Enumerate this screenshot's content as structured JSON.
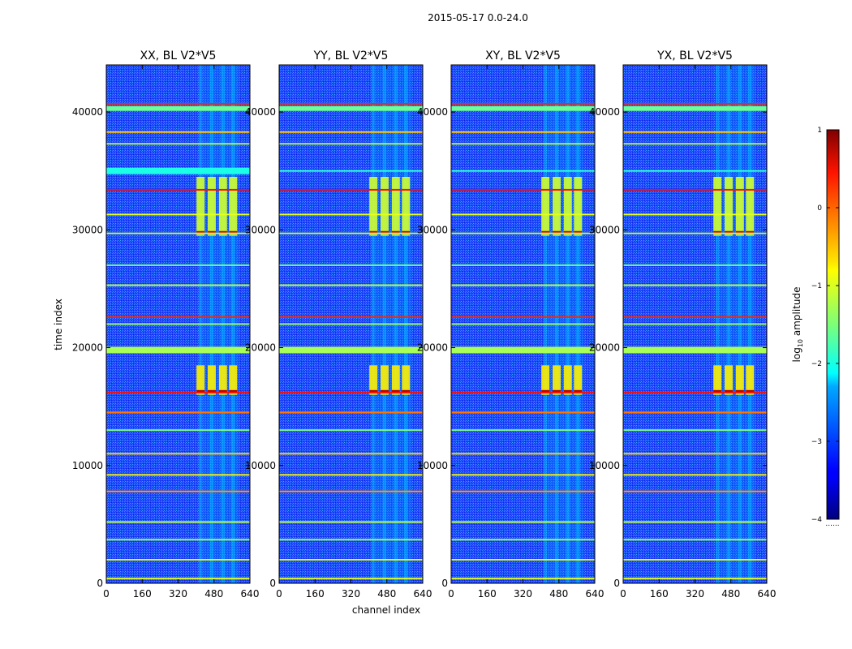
{
  "figure": {
    "suptitle": "2015-05-17 0.0-24.0",
    "xlabel": "channel index",
    "ylabel": "time index",
    "colorbar_label_prefix": "log",
    "colorbar_label_sub": "10",
    "colorbar_label_suffix": " amplitude",
    "colorbar_footnote": "......"
  },
  "chart_data": {
    "type": "heatmap",
    "colormap": "jet",
    "xlim": [
      0,
      640
    ],
    "ylim": [
      0,
      44000
    ],
    "xticks": [
      "0",
      "160",
      "320",
      "480",
      "640"
    ],
    "yticks": [
      "0",
      "10000",
      "20000",
      "30000",
      "40000"
    ],
    "xtick_values": [
      0,
      160,
      320,
      480,
      640
    ],
    "ytick_values": [
      0,
      10000,
      20000,
      30000,
      40000
    ],
    "colorbar": {
      "min": -4,
      "max": 1,
      "ticks": [
        "1",
        "0",
        "−1",
        "−2",
        "−3",
        "−4"
      ],
      "tick_values": [
        1,
        0,
        -1,
        -2,
        -3,
        -4
      ]
    },
    "panels": [
      {
        "title": "XX, BL V2*V5",
        "ytick_labels": [
          "0",
          "10000",
          "20000",
          "30000",
          "40000"
        ]
      },
      {
        "title": "YY, BL V2*V5",
        "ytick_labels": [
          "0",
          "10000",
          "20000",
          "30000",
          "40000"
        ]
      },
      {
        "title": "XY, BL V2*V5",
        "ytick_labels": [
          "0",
          "10000",
          "20000",
          "30000",
          "40000"
        ]
      },
      {
        "title": "YX, BL V2*V5",
        "ytick_labels": [
          "0",
          "10000",
          "20000",
          "30000",
          "40000"
        ]
      }
    ],
    "rfi_channel_band": [
      400,
      600
    ],
    "rfi_channel_columns": [
      420,
      470,
      520,
      565
    ],
    "bright_time_blocks": [
      {
        "t0": 29500,
        "t1": 34500,
        "level": -1.1
      },
      {
        "t0": 16000,
        "t1": 18500,
        "level": -0.8
      }
    ],
    "flagged_rows": [
      {
        "t": 40700,
        "level": 0.2
      },
      {
        "t": 40300,
        "level": -1.6
      },
      {
        "t": 38300,
        "level": -0.6
      },
      {
        "t": 37300,
        "level": -1.3
      },
      {
        "t": 35000,
        "level": -1.9
      },
      {
        "t": 33400,
        "level": 0.3
      },
      {
        "t": 31300,
        "level": -1.0
      },
      {
        "t": 29700,
        "level": -1.3
      },
      {
        "t": 27000,
        "level": -1.6
      },
      {
        "t": 25300,
        "level": -1.2
      },
      {
        "t": 22600,
        "level": 0.2
      },
      {
        "t": 22000,
        "level": -1.4
      },
      {
        "t": 19800,
        "level": -1.3
      },
      {
        "t": 16200,
        "level": 0.3
      },
      {
        "t": 14500,
        "level": -0.2
      },
      {
        "t": 13000,
        "level": -1.5
      },
      {
        "t": 11000,
        "level": -0.6
      },
      {
        "t": 9200,
        "level": -0.8
      },
      {
        "t": 7800,
        "level": -0.4
      },
      {
        "t": 5200,
        "level": -1.2
      },
      {
        "t": 3700,
        "level": -1.4
      },
      {
        "t": 2000,
        "level": -1.1
      },
      {
        "t": 400,
        "level": -1.0
      }
    ]
  }
}
